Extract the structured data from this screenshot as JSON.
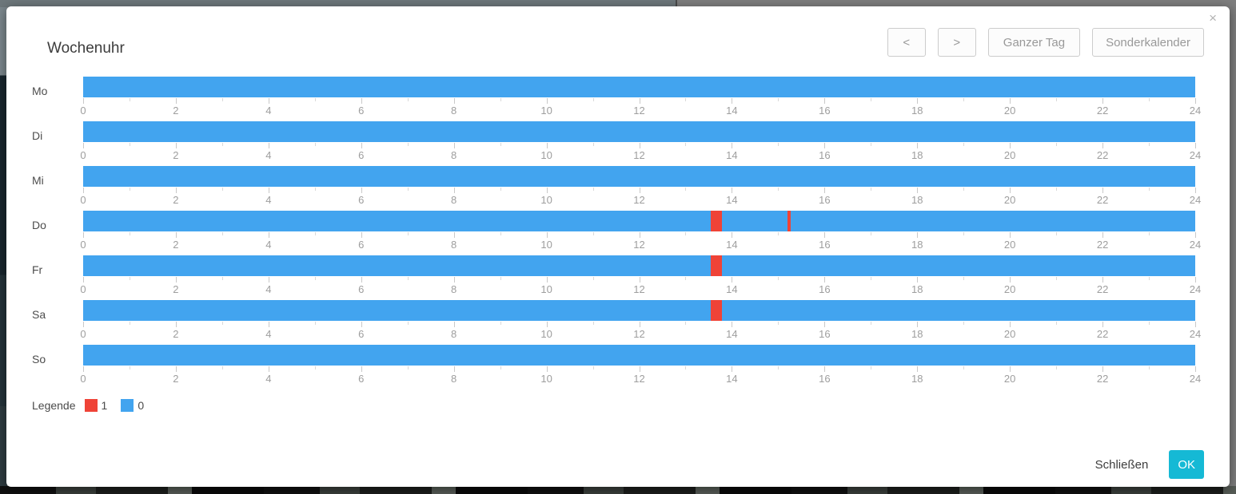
{
  "dialog": {
    "title": "Wochenuhr",
    "close_icon": "×",
    "toolbar": {
      "prev": "<",
      "next": ">",
      "full_day": "Ganzer Tag",
      "special_calendar": "Sonderkalender"
    },
    "footer": {
      "close": "Schließen",
      "ok": "OK"
    }
  },
  "colors": {
    "on": "#ef4337",
    "off": "#42a4ef",
    "ok_button": "#15b9d5"
  },
  "legend": {
    "label": "Legende",
    "items": [
      {
        "label": "1",
        "color": "#ef4337"
      },
      {
        "label": "0",
        "color": "#42a4ef"
      }
    ]
  },
  "chart_data": {
    "type": "bar",
    "subtype": "weekly-timeline",
    "title": "Wochenuhr",
    "x_axis": {
      "min": 0,
      "max": 24,
      "major_tick_step": 2,
      "minor_tick_step": 1,
      "unit": "hour",
      "tick_labels": [
        0,
        2,
        4,
        6,
        8,
        10,
        12,
        14,
        16,
        18,
        20,
        22,
        24
      ]
    },
    "categories": [
      "Mo",
      "Di",
      "Mi",
      "Do",
      "Fr",
      "Sa",
      "So"
    ],
    "legend_position": "bottom-left",
    "rows": [
      {
        "day": "Mo",
        "base_value": 0,
        "segments": []
      },
      {
        "day": "Di",
        "base_value": 0,
        "segments": []
      },
      {
        "day": "Mi",
        "base_value": 0,
        "segments": []
      },
      {
        "day": "Do",
        "base_value": 0,
        "segments": [
          {
            "value": 1,
            "start_hour": 13.55,
            "end_hour": 13.78
          },
          {
            "value": 1,
            "start_hour": 15.2,
            "end_hour": 15.27
          }
        ]
      },
      {
        "day": "Fr",
        "base_value": 0,
        "segments": [
          {
            "value": 1,
            "start_hour": 13.55,
            "end_hour": 13.78
          }
        ]
      },
      {
        "day": "Sa",
        "base_value": 0,
        "segments": [
          {
            "value": 1,
            "start_hour": 13.55,
            "end_hour": 13.78
          }
        ]
      },
      {
        "day": "So",
        "base_value": 0,
        "segments": []
      }
    ]
  }
}
